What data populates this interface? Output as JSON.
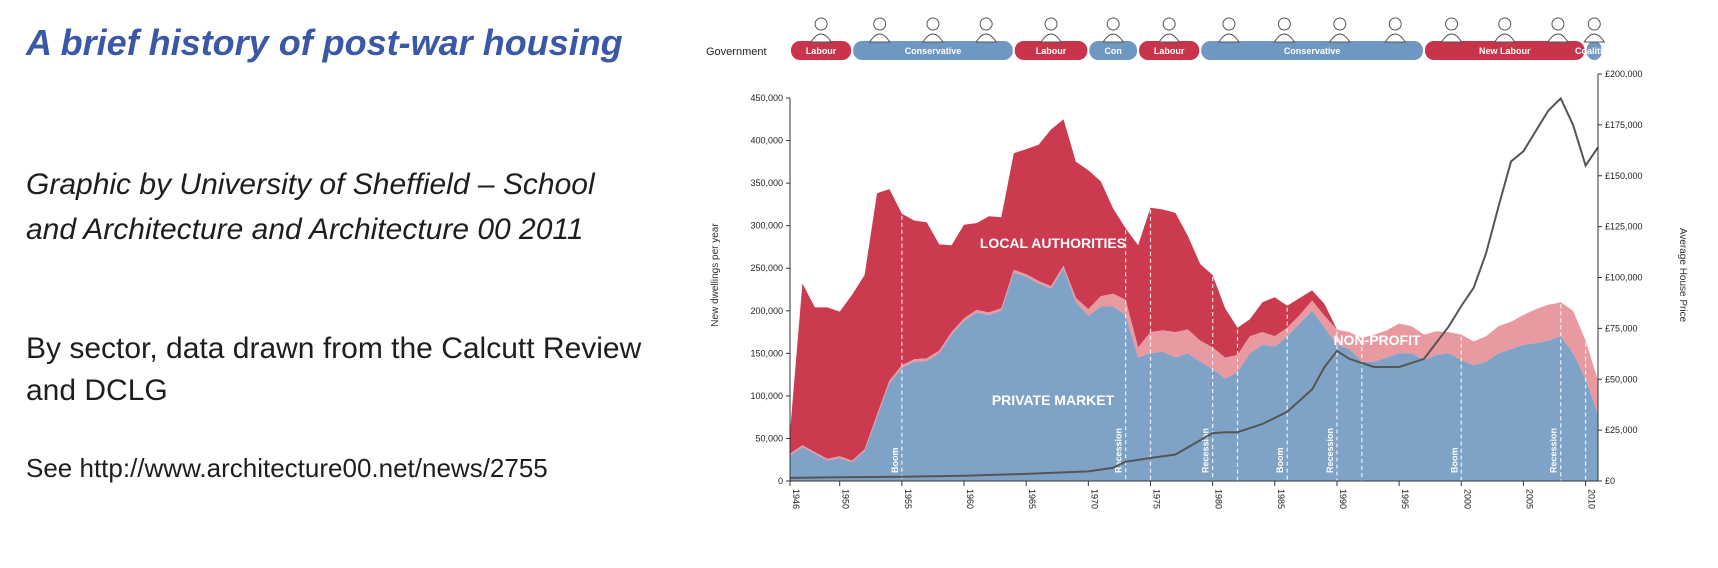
{
  "slide": {
    "title": "A brief history of post-war housing",
    "credit": "Graphic by University of Sheffield – School and Architecture and Architecture 00 2011",
    "sector_note": "By sector, data drawn from the Calcutt Review and DCLG",
    "see_url": "See http://www.architecture00.net/news/2755"
  },
  "chart_data": {
    "type": "area",
    "title": "",
    "xlabel": "",
    "ylabel": "New dwellings per year",
    "y2label": "Average House Price",
    "xlim": [
      1946,
      2011
    ],
    "ylim": [
      0,
      450000
    ],
    "y2lim": [
      0,
      200000
    ],
    "x_ticks": [
      "1946",
      "1950",
      "1955",
      "1960",
      "1965",
      "1970",
      "1975",
      "1980",
      "1985",
      "1990",
      "1995",
      "2000",
      "2005",
      "2010"
    ],
    "y_ticks": [
      "0",
      "50,000",
      "100,000",
      "150,000",
      "200,000",
      "250,000",
      "300,000",
      "350,000",
      "400,000",
      "450,000"
    ],
    "y2_ticks": [
      "£0",
      "£25,000",
      "£50,000",
      "£75,000",
      "£100,000",
      "£125,000",
      "£150,000",
      "£175,000",
      "£200,000"
    ],
    "colors": {
      "private": "#7fa3c7",
      "nonprofit": "#e99aa1",
      "local": "#cc3a4f",
      "price_line": "#555555",
      "labour": "#c8344a",
      "conservative": "#6e97c2",
      "coalition": "#6e97c2"
    },
    "series": [
      {
        "name": "PRIVATE MARKET",
        "x": [
          1946,
          1947,
          1948,
          1949,
          1950,
          1951,
          1952,
          1953,
          1954,
          1955,
          1956,
          1957,
          1958,
          1959,
          1960,
          1961,
          1962,
          1963,
          1964,
          1965,
          1966,
          1967,
          1968,
          1969,
          1970,
          1971,
          1972,
          1973,
          1974,
          1975,
          1976,
          1977,
          1978,
          1979,
          1980,
          1981,
          1982,
          1983,
          1984,
          1985,
          1986,
          1987,
          1988,
          1989,
          1990,
          1991,
          1992,
          1993,
          1994,
          1995,
          1996,
          1997,
          1998,
          1999,
          2000,
          2001,
          2002,
          2003,
          2004,
          2005,
          2006,
          2007,
          2008,
          2009,
          2010,
          2011
        ],
        "values": [
          30000,
          40000,
          32000,
          24000,
          27000,
          22000,
          35000,
          75000,
          115000,
          133000,
          140000,
          141000,
          150000,
          172000,
          188000,
          198000,
          195000,
          200000,
          245000,
          240000,
          232000,
          226000,
          250000,
          210000,
          194000,
          205000,
          205000,
          195000,
          145000,
          150000,
          152000,
          145000,
          150000,
          140000,
          132000,
          120000,
          128000,
          150000,
          160000,
          158000,
          170000,
          185000,
          200000,
          180000,
          160000,
          155000,
          140000,
          140000,
          145000,
          150000,
          150000,
          142000,
          148000,
          150000,
          142000,
          136000,
          140000,
          150000,
          155000,
          160000,
          162000,
          165000,
          170000,
          150000,
          120000,
          78000
        ]
      },
      {
        "name": "NON-PROFIT",
        "x": [
          1946,
          1947,
          1948,
          1949,
          1950,
          1951,
          1952,
          1953,
          1954,
          1955,
          1956,
          1957,
          1958,
          1959,
          1960,
          1961,
          1962,
          1963,
          1964,
          1965,
          1966,
          1967,
          1968,
          1969,
          1970,
          1971,
          1972,
          1973,
          1974,
          1975,
          1976,
          1977,
          1978,
          1979,
          1980,
          1981,
          1982,
          1983,
          1984,
          1985,
          1986,
          1987,
          1988,
          1989,
          1990,
          1991,
          1992,
          1993,
          1994,
          1995,
          1996,
          1997,
          1998,
          1999,
          2000,
          2001,
          2002,
          2003,
          2004,
          2005,
          2006,
          2007,
          2008,
          2009,
          2010,
          2011
        ],
        "values": [
          2000,
          2000,
          2000,
          2000,
          2000,
          2000,
          2000,
          3000,
          3000,
          3000,
          3000,
          3000,
          3000,
          3000,
          3000,
          3000,
          3000,
          3000,
          3000,
          3000,
          3000,
          3000,
          3000,
          5000,
          8000,
          12000,
          15000,
          18000,
          12000,
          25000,
          25000,
          30000,
          28000,
          25000,
          25000,
          25000,
          20000,
          20000,
          15000,
          12000,
          10000,
          10000,
          12000,
          14000,
          18000,
          20000,
          28000,
          32000,
          32000,
          35000,
          32000,
          30000,
          28000,
          25000,
          30000,
          28000,
          30000,
          32000,
          32000,
          35000,
          40000,
          42000,
          40000,
          50000,
          45000,
          40000
        ]
      },
      {
        "name": "LOCAL AUTHORITIES",
        "x": [
          1946,
          1947,
          1948,
          1949,
          1950,
          1951,
          1952,
          1953,
          1954,
          1955,
          1956,
          1957,
          1958,
          1959,
          1960,
          1961,
          1962,
          1963,
          1964,
          1965,
          1966,
          1967,
          1968,
          1969,
          1970,
          1971,
          1972,
          1973,
          1974,
          1975,
          1976,
          1977,
          1978,
          1979,
          1980,
          1981,
          1982,
          1983,
          1984,
          1985,
          1986,
          1987,
          1988,
          1989,
          1990,
          1991,
          1992,
          1993,
          1994,
          1995,
          1996,
          1997,
          1998,
          1999,
          2000,
          2001,
          2002,
          2003,
          2004,
          2005,
          2006,
          2007,
          2008,
          2009,
          2010,
          2011
        ],
        "values": [
          25000,
          190000,
          170000,
          178000,
          170000,
          195000,
          205000,
          260000,
          225000,
          178000,
          163000,
          160000,
          125000,
          102000,
          110000,
          102000,
          113000,
          107000,
          137000,
          147000,
          160000,
          184000,
          172000,
          160000,
          163000,
          135000,
          100000,
          84000,
          120000,
          146000,
          142000,
          140000,
          110000,
          90000,
          85000,
          58000,
          32000,
          20000,
          35000,
          46000,
          26000,
          20000,
          12000,
          14000,
          0,
          0,
          0,
          0,
          0,
          0,
          0,
          0,
          0,
          0,
          0,
          0,
          0,
          0,
          0,
          0,
          0,
          0,
          0,
          0,
          0,
          0
        ]
      },
      {
        "name": "Average House Price",
        "x": [
          1946,
          1950,
          1955,
          1960,
          1965,
          1970,
          1972,
          1973,
          1975,
          1977,
          1979,
          1980,
          1981,
          1982,
          1984,
          1986,
          1988,
          1989,
          1990,
          1991,
          1992,
          1993,
          1995,
          1997,
          1998,
          1999,
          2000,
          2001,
          2002,
          2003,
          2004,
          2005,
          2006,
          2007,
          2008,
          2009,
          2010,
          2011
        ],
        "values": [
          1500,
          1800,
          2100,
          2600,
          3500,
          4700,
          6500,
          9500,
          11300,
          13000,
          20000,
          23500,
          24000,
          24000,
          28000,
          34000,
          45000,
          56000,
          64000,
          60000,
          58000,
          56000,
          56000,
          60000,
          68000,
          76000,
          86000,
          95000,
          112000,
          135000,
          157000,
          162000,
          172000,
          182000,
          188000,
          175000,
          155000,
          164000
        ]
      }
    ],
    "area_labels": [
      "LOCAL AUTHORITIES",
      "NON-PROFIT",
      "PRIVATE MARKET"
    ],
    "events": [
      {
        "x": 1955,
        "label": "Boom"
      },
      {
        "x": 1973,
        "label": "Recession"
      },
      {
        "x": 1975,
        "label": ""
      },
      {
        "x": 1980,
        "label": "Recession"
      },
      {
        "x": 1982,
        "label": ""
      },
      {
        "x": 1986,
        "label": "Boom"
      },
      {
        "x": 1990,
        "label": "Recession"
      },
      {
        "x": 1992,
        "label": ""
      },
      {
        "x": 2000,
        "label": "Boom"
      },
      {
        "x": 2008,
        "label": "Recession"
      },
      {
        "x": 2010,
        "label": ""
      }
    ],
    "government": {
      "label": "Government",
      "periods": [
        {
          "label": "Labour",
          "start": 1946,
          "end": 1951,
          "party": "labour"
        },
        {
          "label": "Conservative",
          "start": 1951,
          "end": 1964,
          "party": "conservative"
        },
        {
          "label": "Labour",
          "start": 1964,
          "end": 1970,
          "party": "labour"
        },
        {
          "label": "Con",
          "start": 1970,
          "end": 1974,
          "party": "conservative"
        },
        {
          "label": "Labour",
          "start": 1974,
          "end": 1979,
          "party": "labour"
        },
        {
          "label": "Conservative",
          "start": 1979,
          "end": 1997,
          "party": "conservative"
        },
        {
          "label": "New Labour",
          "start": 1997,
          "end": 2010,
          "party": "labour"
        },
        {
          "label": "Coalition",
          "start": 2010,
          "end": 2011.4,
          "party": "coalition"
        }
      ]
    },
    "grid": false,
    "legend": "none"
  }
}
